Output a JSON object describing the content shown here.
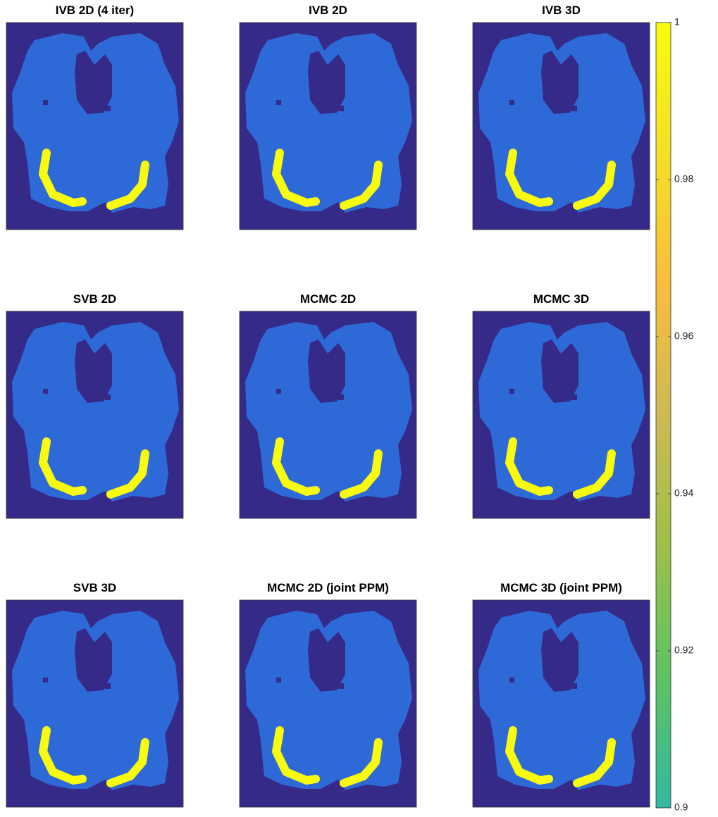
{
  "chart_data": {
    "type": "image-grid",
    "panels": [
      {
        "title": "IVB 2D (4 iter)"
      },
      {
        "title": "IVB 2D"
      },
      {
        "title": "IVB 3D"
      },
      {
        "title": "SVB 2D"
      },
      {
        "title": "MCMC 2D"
      },
      {
        "title": "MCMC 3D"
      },
      {
        "title": "SVB 3D"
      },
      {
        "title": "MCMC 2D (joint PPM)"
      },
      {
        "title": "MCMC 3D (joint PPM)"
      }
    ],
    "clim": [
      0.9,
      1
    ],
    "cticks": [
      0.9,
      0.92,
      0.94,
      0.96,
      0.98,
      1
    ],
    "colormap": [
      "#33b8a0",
      "#5cc363",
      "#9dbf48",
      "#cdba55",
      "#f9bd3e",
      "#f4df26",
      "#f9fb0e"
    ]
  }
}
